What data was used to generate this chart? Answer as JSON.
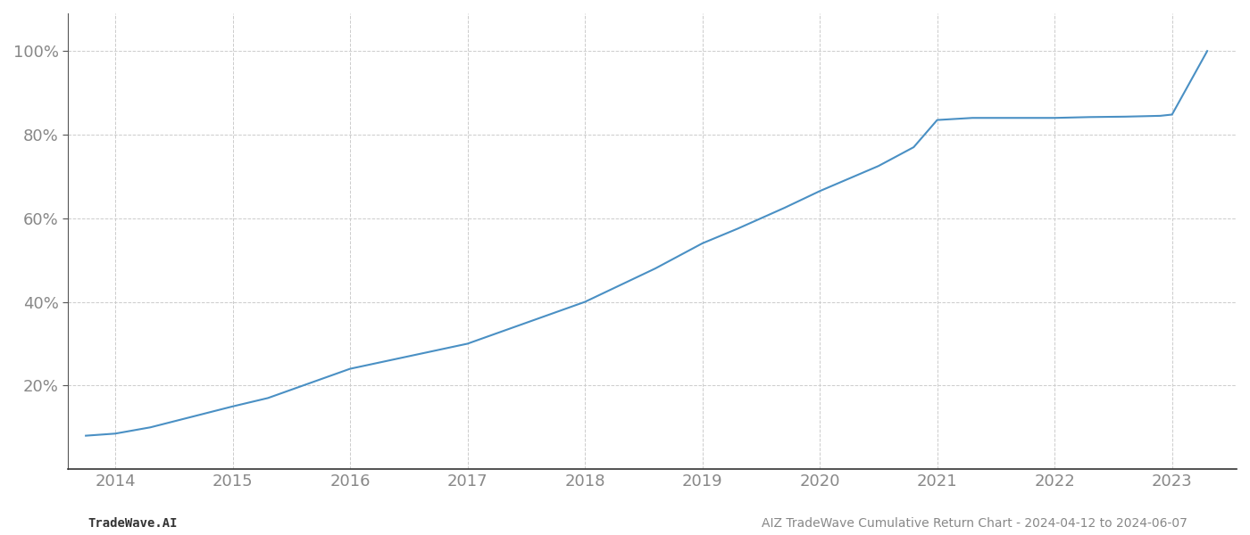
{
  "x_years": [
    2013.75,
    2014.0,
    2014.3,
    2015.0,
    2015.3,
    2016.0,
    2016.5,
    2017.0,
    2017.5,
    2018.0,
    2018.3,
    2018.6,
    2019.0,
    2019.3,
    2019.7,
    2020.0,
    2020.25,
    2020.5,
    2020.8,
    2021.0,
    2021.3,
    2021.6,
    2022.0,
    2022.3,
    2022.6,
    2022.9,
    2023.0,
    2023.3
  ],
  "y_values": [
    0.08,
    0.085,
    0.1,
    0.15,
    0.17,
    0.24,
    0.27,
    0.3,
    0.35,
    0.4,
    0.44,
    0.48,
    0.54,
    0.575,
    0.625,
    0.665,
    0.695,
    0.725,
    0.77,
    0.835,
    0.84,
    0.84,
    0.84,
    0.842,
    0.843,
    0.845,
    0.848,
    1.0
  ],
  "line_color": "#4a90c4",
  "line_width": 1.5,
  "yticks": [
    0.2,
    0.4,
    0.6,
    0.8,
    1.0
  ],
  "ytick_labels": [
    "20%",
    "40%",
    "60%",
    "80%",
    "100%"
  ],
  "xticks": [
    2014,
    2015,
    2016,
    2017,
    2018,
    2019,
    2020,
    2021,
    2022,
    2023
  ],
  "xlim": [
    2013.6,
    2023.55
  ],
  "ylim": [
    0.0,
    1.09
  ],
  "grid_color": "#cccccc",
  "grid_linestyle": "--",
  "grid_linewidth": 0.7,
  "bg_color": "#ffffff",
  "footer_left": "TradeWave.AI",
  "footer_right": "AIZ TradeWave Cumulative Return Chart - 2024-04-12 to 2024-06-07",
  "footer_fontsize": 10,
  "tick_fontsize": 13,
  "label_color": "#888888"
}
